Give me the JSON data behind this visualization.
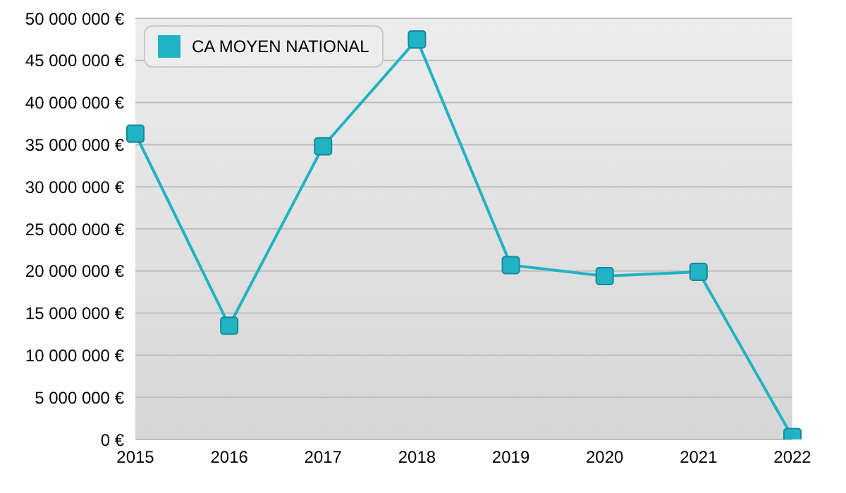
{
  "chart_data": {
    "type": "line",
    "categories": [
      "2015",
      "2016",
      "2017",
      "2018",
      "2019",
      "2020",
      "2021",
      "2022"
    ],
    "series": [
      {
        "name": "CA MOYEN NATIONAL",
        "color": "#1fb3c4",
        "values": [
          36300000,
          13500000,
          34800000,
          47500000,
          20700000,
          19400000,
          19900000,
          300000
        ]
      }
    ],
    "ylim": [
      0,
      50000000
    ],
    "yticks": [
      {
        "value": 0,
        "label": "0 €"
      },
      {
        "value": 5000000,
        "label": "5 000 000 €"
      },
      {
        "value": 10000000,
        "label": "10 000 000 €"
      },
      {
        "value": 15000000,
        "label": "15 000 000 €"
      },
      {
        "value": 20000000,
        "label": "20 000 000 €"
      },
      {
        "value": 25000000,
        "label": "25 000 000 €"
      },
      {
        "value": 30000000,
        "label": "30 000 000 €"
      },
      {
        "value": 35000000,
        "label": "35 000 000 €"
      },
      {
        "value": 40000000,
        "label": "40 000 000 €"
      },
      {
        "value": 45000000,
        "label": "45 000 000 €"
      },
      {
        "value": 50000000,
        "label": "50 000 000 €"
      }
    ],
    "grid": "y",
    "legend": "top left",
    "marker": "square",
    "line_style": "solid"
  }
}
